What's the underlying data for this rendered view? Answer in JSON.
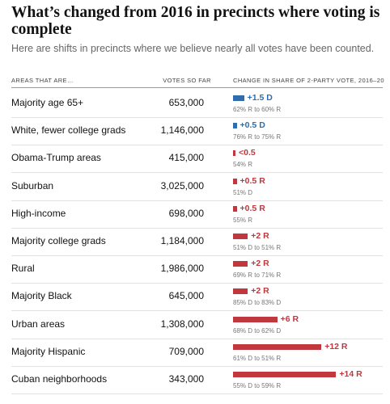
{
  "title": "What’s changed from 2016 in precincts where voting is complete",
  "subtitle": "Here are shifts in precincts where we believe nearly all votes have been counted.",
  "headers": {
    "areas": "AREAS THAT ARE…",
    "votes": "VOTES SO FAR",
    "change": "CHANGE IN SHARE OF 2-PARTY VOTE, 2016–20"
  },
  "colors": {
    "dem": "#2f6dad",
    "rep": "#c0373d"
  },
  "chart_data": {
    "type": "table",
    "columns": [
      "AREAS THAT ARE…",
      "VOTES SO FAR",
      "CHANGE IN SHARE OF 2-PARTY VOTE, 2016–20"
    ],
    "rows": [
      {
        "area": "Majority age 65+",
        "votes": "653,000",
        "shift": 1.5,
        "party": "D",
        "shift_label": "+1.5 D",
        "detail": "62% R to 60% R"
      },
      {
        "area": "White, fewer college grads",
        "votes": "1,146,000",
        "shift": 0.5,
        "party": "D",
        "shift_label": "+0.5 D",
        "detail": "76% R to 75% R"
      },
      {
        "area": "Obama-Trump areas",
        "votes": "415,000",
        "shift": 0.2,
        "party": "R",
        "shift_label": "<0.5",
        "detail": "54% R"
      },
      {
        "area": "Suburban",
        "votes": "3,025,000",
        "shift": 0.5,
        "party": "R",
        "shift_label": "+0.5 R",
        "detail": "51% D"
      },
      {
        "area": "High-income",
        "votes": "698,000",
        "shift": 0.5,
        "party": "R",
        "shift_label": "+0.5 R",
        "detail": "55% R"
      },
      {
        "area": "Majority college grads",
        "votes": "1,184,000",
        "shift": 2,
        "party": "R",
        "shift_label": "+2 R",
        "detail": "51% D to 51% R"
      },
      {
        "area": "Rural",
        "votes": "1,986,000",
        "shift": 2,
        "party": "R",
        "shift_label": "+2 R",
        "detail": "69% R to 71% R"
      },
      {
        "area": "Majority Black",
        "votes": "645,000",
        "shift": 2,
        "party": "R",
        "shift_label": "+2 R",
        "detail": "85% D to 83% D"
      },
      {
        "area": "Urban areas",
        "votes": "1,308,000",
        "shift": 6,
        "party": "R",
        "shift_label": "+6 R",
        "detail": "68% D to 62% D"
      },
      {
        "area": "Majority Hispanic",
        "votes": "709,000",
        "shift": 12,
        "party": "R",
        "shift_label": "+12 R",
        "detail": "61% D to 51% R"
      },
      {
        "area": "Cuban neighborhoods",
        "votes": "343,000",
        "shift": 14,
        "party": "R",
        "shift_label": "+14 R",
        "detail": "55% D to 59% R"
      }
    ]
  }
}
